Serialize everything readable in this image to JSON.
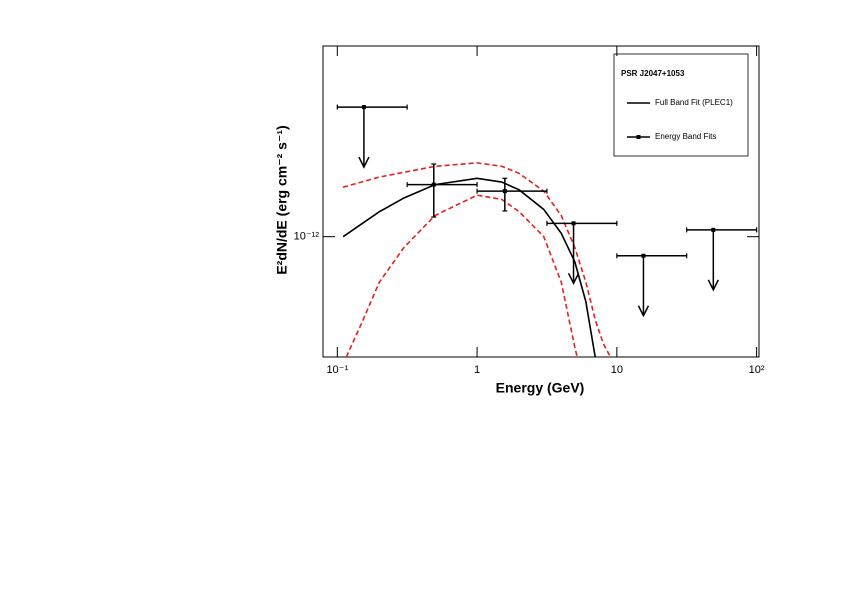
{
  "chart_data": {
    "type": "line",
    "x_label": "Energy (GeV)",
    "y_label": "E²dN/dE (erg cm⁻² s⁻¹)",
    "log_x": true,
    "log_y": true,
    "xlim": [
      0.079,
      104
    ],
    "ylim": [
      5e-13,
      3e-12
    ],
    "xticks": [
      {
        "value": 0.1,
        "label": "10⁻¹"
      },
      1,
      10,
      {
        "value": 100,
        "label": "10²"
      }
    ],
    "yticks": [
      {
        "value": 1e-12,
        "label": "10⁻¹²"
      }
    ],
    "legend_title": "PSR J2047+1053",
    "legend_position": "upper right",
    "series": [
      {
        "name": "Full Band Fit (PLEC1)",
        "color": "#000000",
        "style": "solid",
        "x": [
          0.11,
          0.2,
          0.3,
          0.5,
          1.0,
          1.5,
          2.0,
          3.0,
          4.0,
          5.0,
          6.0,
          7.0
        ],
        "values": [
          1e-12,
          1.155e-12,
          1.25e-12,
          1.35e-12,
          1.4e-12,
          1.37e-12,
          1.31e-12,
          1.17e-12,
          1.02e-12,
          8.66e-13,
          6.88e-13,
          5e-13
        ]
      },
      {
        "color": "#e8201a",
        "style": "dashed",
        "x": [
          0.11,
          0.2,
          0.5,
          1.0,
          1.5,
          2.0,
          3.0,
          4.0,
          5.0,
          6.0,
          7.0,
          8.0,
          9.0
        ],
        "values": [
          1.33e-12,
          1.41e-12,
          1.5e-12,
          1.53e-12,
          1.5e-12,
          1.44e-12,
          1.3e-12,
          1.13e-12,
          9.4e-13,
          7.7e-13,
          6.2e-13,
          5.4e-13,
          5e-13
        ]
      },
      {
        "color": "#e8201a",
        "style": "dashed",
        "x": [
          0.116,
          0.15,
          0.2,
          0.3,
          0.5,
          1.0,
          1.5,
          2.0,
          3.0,
          4.0,
          5.0,
          5.2
        ],
        "values": [
          5e-13,
          6.1e-13,
          7.7e-13,
          9.4e-13,
          1.13e-12,
          1.27e-12,
          1.24e-12,
          1.155e-12,
          1e-12,
          7.7e-13,
          5.3e-13,
          5e-13
        ]
      },
      {
        "name": "Energy Band Fits",
        "color": "#000000",
        "style": "points",
        "x": [
          0.155,
          0.49,
          1.58,
          4.9,
          15.5,
          49
        ],
        "xlow": [
          0.1,
          0.316,
          1.0,
          3.16,
          10,
          31.6
        ],
        "xhigh": [
          0.316,
          1.0,
          3.16,
          10,
          31.6,
          100
        ],
        "values": [
          2.11e-12,
          1.35e-12,
          1.3e-12,
          1.08e-12,
          8.96e-13,
          1.04e-12
        ],
        "ylow": [
          null,
          1.12e-12,
          1.16e-12,
          null,
          null,
          null
        ],
        "yhigh": [
          null,
          1.52e-12,
          1.4e-12,
          null,
          null,
          null
        ],
        "upper_limit": [
          true,
          false,
          false,
          true,
          true,
          true
        ]
      }
    ]
  }
}
